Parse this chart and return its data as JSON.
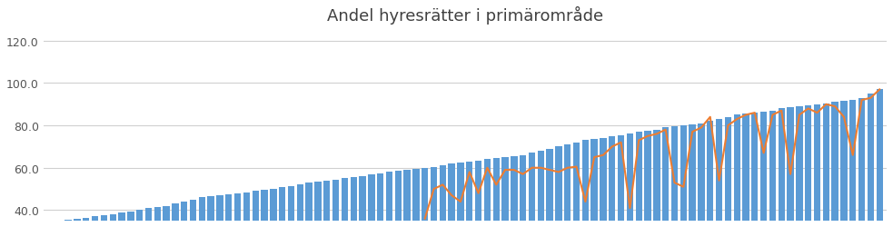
{
  "title": "Andel hyresrätter i primärområde",
  "ylim": [
    35,
    125
  ],
  "yticks": [
    40.0,
    60.0,
    80.0,
    100.0,
    120.0
  ],
  "bar_color": "#5B9BD5",
  "line_color": "#ED7D31",
  "bar_width": 0.75,
  "background_color": "#FFFFFF",
  "grid_color": "#D0D0D0",
  "title_fontsize": 13,
  "tick_fontsize": 9,
  "blue_values": [
    34.0,
    35.0,
    35.5,
    36.0,
    36.5,
    37.0,
    37.5,
    38.0,
    39.0,
    39.5,
    40.0,
    41.0,
    41.5,
    42.0,
    43.0,
    44.0,
    45.0,
    46.0,
    46.5,
    47.0,
    47.5,
    48.0,
    48.5,
    49.0,
    49.5,
    50.0,
    51.0,
    51.5,
    52.0,
    53.0,
    53.5,
    54.0,
    54.5,
    55.0,
    55.5,
    56.0,
    57.0,
    57.5,
    58.0,
    58.5,
    59.0,
    59.5,
    60.0,
    60.5,
    61.0,
    62.0,
    62.5,
    63.0,
    63.5,
    64.0,
    64.5,
    65.0,
    65.5,
    66.0,
    67.0,
    68.0,
    69.0,
    70.0,
    71.0,
    72.0,
    73.0,
    73.5,
    74.0,
    75.0,
    75.5,
    76.0,
    77.0,
    77.5,
    78.0,
    79.0,
    79.5,
    80.0,
    80.5,
    81.0,
    82.0,
    83.0,
    84.0,
    85.0,
    85.5,
    86.0,
    86.5,
    87.0,
    88.0,
    88.5,
    89.0,
    89.5,
    90.0,
    90.5,
    91.0,
    91.5,
    92.0,
    93.0,
    95.0,
    97.0
  ],
  "orange_values": [
    null,
    null,
    null,
    null,
    null,
    null,
    null,
    null,
    null,
    null,
    null,
    null,
    null,
    null,
    null,
    null,
    null,
    null,
    null,
    null,
    null,
    null,
    null,
    null,
    null,
    null,
    null,
    null,
    null,
    null,
    null,
    null,
    null,
    null,
    null,
    null,
    null,
    null,
    null,
    null,
    null,
    null,
    36.0,
    50.0,
    52.0,
    47.0,
    44.0,
    58.0,
    48.0,
    60.0,
    52.0,
    59.0,
    59.0,
    57.0,
    60.0,
    60.0,
    59.0,
    58.0,
    60.0,
    60.5,
    44.0,
    65.0,
    66.0,
    70.0,
    72.0,
    41.0,
    73.0,
    75.0,
    76.0,
    78.0,
    53.0,
    51.0,
    77.0,
    79.0,
    84.0,
    54.0,
    80.0,
    83.0,
    85.0,
    86.0,
    67.0,
    85.0,
    87.0,
    57.0,
    85.0,
    88.0,
    86.0,
    90.0,
    89.0,
    84.0,
    66.0,
    92.0,
    93.0,
    97.0
  ]
}
